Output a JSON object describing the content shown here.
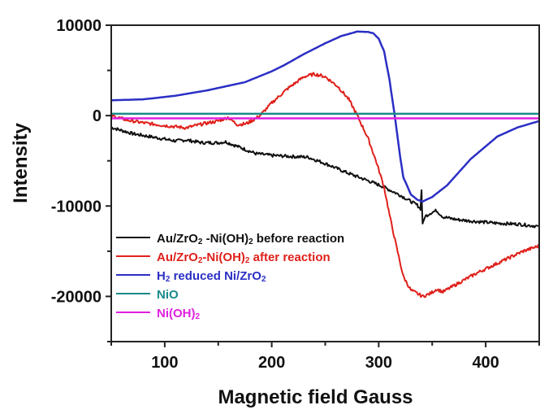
{
  "chart_data": {
    "type": "line",
    "title": "",
    "xlabel": "Magnetic field Gauss",
    "ylabel": "Intensity",
    "xlim": [
      50,
      450
    ],
    "ylim": [
      -25000,
      10000
    ],
    "xticks": [
      100,
      200,
      300,
      400
    ],
    "xminor_ticks": [
      50,
      150,
      250,
      350,
      450
    ],
    "yticks": [
      10000,
      0,
      -10000,
      -20000
    ],
    "ytick_labels": [
      "10000",
      "0",
      "-10000",
      "-20000"
    ],
    "yminor_ticks": [
      5000,
      -5000,
      -15000,
      -25000
    ],
    "grid": false,
    "legend_position": "lower-left",
    "series": [
      {
        "name": "Au/ZrO2 -Ni(OH)2 before reaction",
        "legend_parts": [
          [
            "Au/ZrO",
            ""
          ],
          [
            "2",
            "sub"
          ],
          [
            " -Ni(OH)",
            ""
          ],
          [
            "2",
            "sub"
          ],
          [
            " before reaction",
            ""
          ]
        ],
        "color": "#111111",
        "noisy": true,
        "x": [
          50,
          70,
          90,
          110,
          120,
          135,
          150,
          157,
          170,
          185,
          200,
          215,
          234,
          250,
          270,
          290,
          303,
          320,
          336,
          339,
          340,
          341,
          343,
          348,
          354,
          360,
          373,
          390,
          410,
          430,
          449
        ],
        "y": [
          -1300,
          -2000,
          -2400,
          -2800,
          -2700,
          -3000,
          -3000,
          -2900,
          -3500,
          -4200,
          -4400,
          -4500,
          -4600,
          -5300,
          -6300,
          -7200,
          -7800,
          -8800,
          -9900,
          -10300,
          -8200,
          -12100,
          -11200,
          -10800,
          -10500,
          -11200,
          -11500,
          -11700,
          -11900,
          -12000,
          -12250
        ]
      },
      {
        "name": "Au/ZrO2-Ni(OH)2 after reaction",
        "legend_parts": [
          [
            "Au/ZrO",
            ""
          ],
          [
            "2",
            "sub"
          ],
          [
            "-Ni(OH)",
            ""
          ],
          [
            "2",
            "sub"
          ],
          [
            " after reaction",
            ""
          ]
        ],
        "color": "#e0201b",
        "noisy": true,
        "x": [
          50,
          65,
          80,
          100,
          120,
          136,
          150,
          159,
          168,
          176,
          184,
          189,
          200,
          215,
          230,
          240,
          250,
          262,
          272,
          280,
          290,
          298,
          305,
          311,
          316,
          323,
          330,
          341,
          348,
          354,
          360,
          375,
          392,
          417,
          435,
          450
        ],
        "y": [
          0,
          -500,
          -800,
          -1100,
          -1350,
          -900,
          -600,
          -200,
          -1000,
          -900,
          -400,
          0,
          1400,
          3000,
          4300,
          4600,
          4300,
          3200,
          1800,
          0,
          -2500,
          -5200,
          -7900,
          -11500,
          -14200,
          -17800,
          -19300,
          -20000,
          -19700,
          -19200,
          -19500,
          -18500,
          -17400,
          -16000,
          -15000,
          -14400
        ]
      },
      {
        "name": "H2 reduced Ni/ZrO2",
        "legend_parts": [
          [
            "H",
            ""
          ],
          [
            "2",
            "sub"
          ],
          [
            " reduced Ni/ZrO",
            ""
          ],
          [
            "2",
            "sub"
          ]
        ],
        "color": "#2b2fc4",
        "noisy": false,
        "x": [
          50,
          80,
          110,
          140,
          175,
          200,
          212,
          230,
          250,
          265,
          280,
          290,
          295,
          300,
          305,
          310,
          315,
          320,
          323,
          330,
          336,
          341,
          350,
          364,
          386,
          411,
          430,
          450
        ],
        "y": [
          1700,
          1800,
          2200,
          2800,
          3700,
          4900,
          5600,
          6800,
          8000,
          8800,
          9300,
          9250,
          9100,
          8500,
          7100,
          4000,
          0,
          -4500,
          -6800,
          -8700,
          -9300,
          -9500,
          -9000,
          -7700,
          -4800,
          -2300,
          -1300,
          -600
        ]
      },
      {
        "name": "NiO",
        "legend_parts": [
          [
            "NiO",
            ""
          ]
        ],
        "color": "#1a8a8a",
        "noisy": false,
        "x": [
          50,
          450
        ],
        "y": [
          200,
          200
        ]
      },
      {
        "name": "Ni(OH)2",
        "legend_parts": [
          [
            "Ni(OH)",
            ""
          ],
          [
            "2",
            "sub"
          ]
        ],
        "color": "#e020e0",
        "noisy": false,
        "x": [
          50,
          450
        ],
        "y": [
          -300,
          -300
        ]
      }
    ]
  }
}
